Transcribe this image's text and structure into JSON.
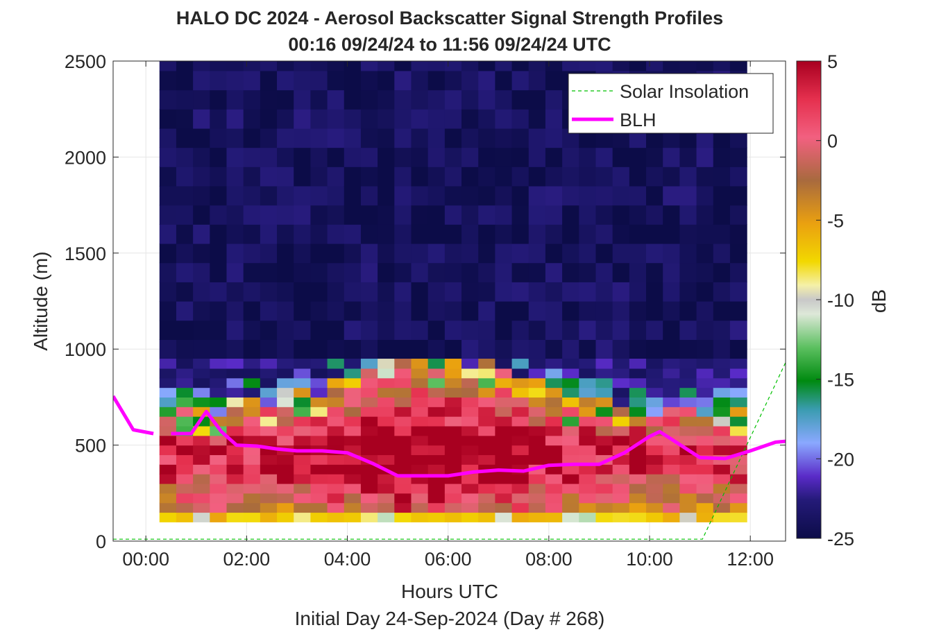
{
  "chart_data": {
    "type": "heatmap",
    "title_line1": "HALO DC 2024 - Aerosol Backscatter Signal Strength Profiles",
    "title_line2": "00:16 09/24/24 to 11:56 09/24/24  UTC",
    "xlabel": "Hours UTC",
    "ylabel": "Altitude (m)",
    "footer": "Initial Day 24-Sep-2024 (Day # 268)",
    "xlim": [
      -0.65,
      12.7
    ],
    "ylim": [
      0,
      2500
    ],
    "x_ticks": [
      0,
      2,
      4,
      6,
      8,
      10,
      12
    ],
    "x_tick_labels": [
      "00:00",
      "02:00",
      "04:00",
      "06:00",
      "08:00",
      "10:00",
      "12:00"
    ],
    "y_ticks": [
      0,
      500,
      1000,
      1500,
      2000,
      2500
    ],
    "y_tick_labels": [
      "0",
      "500",
      "1000",
      "1500",
      "2000",
      "2500"
    ],
    "grid": true,
    "legend_placement": "top-right",
    "colorbar": {
      "label": "dB",
      "range": [
        -25,
        5
      ],
      "ticks": [
        5,
        0,
        -5,
        -10,
        -15,
        -20,
        -25
      ],
      "tick_labels": [
        "5",
        "0",
        "-5",
        "-10",
        "-15",
        "-20",
        "-25"
      ]
    },
    "heatmap": {
      "x_start": 0.27,
      "x_end": 11.93,
      "n_columns": 35,
      "altitude_bins_m": [
        100,
        150,
        200,
        250,
        300,
        350,
        400,
        450,
        500,
        550,
        600,
        650,
        700,
        750,
        800,
        850,
        900
      ],
      "layer_top_m": 950,
      "upper_region_value_db": -24,
      "description_value_db": "aerosol layer below ~900 m; strong (0 to 5 dB) signal near 300-800 m"
    },
    "series": [
      {
        "name": "Solar Insolation",
        "style": "dashed-green",
        "x": [
          -0.65,
          11.05,
          12.7
        ],
        "y": [
          10,
          10,
          930
        ]
      },
      {
        "name": "BLH",
        "style": "solid-magenta",
        "x": [
          -0.65,
          -0.25,
          0.15
        ],
        "y": [
          755,
          580,
          560
        ],
        "x2": [
          0.5,
          0.9,
          1.2,
          1.5,
          1.8,
          2.2,
          2.6,
          3.0,
          3.5,
          4.0,
          4.5,
          5.0,
          5.5,
          6.0,
          6.5,
          7.0,
          7.5,
          8.0,
          8.5,
          9.0,
          9.5,
          10.0,
          10.2,
          10.5,
          11.0,
          11.5,
          12.0,
          12.5,
          12.7
        ],
        "y2": [
          560,
          560,
          675,
          570,
          500,
          495,
          480,
          470,
          470,
          460,
          405,
          340,
          340,
          340,
          360,
          370,
          365,
          395,
          400,
          400,
          460,
          545,
          570,
          520,
          435,
          430,
          470,
          515,
          520
        ]
      }
    ]
  },
  "legend": {
    "solar_label": "Solar Insolation",
    "blh_label": "BLH"
  },
  "colors": {
    "solar": "#00c000",
    "blh": "#ff00ff",
    "upper_fill": "#0c0c48",
    "plot_background": "#ffffff"
  }
}
